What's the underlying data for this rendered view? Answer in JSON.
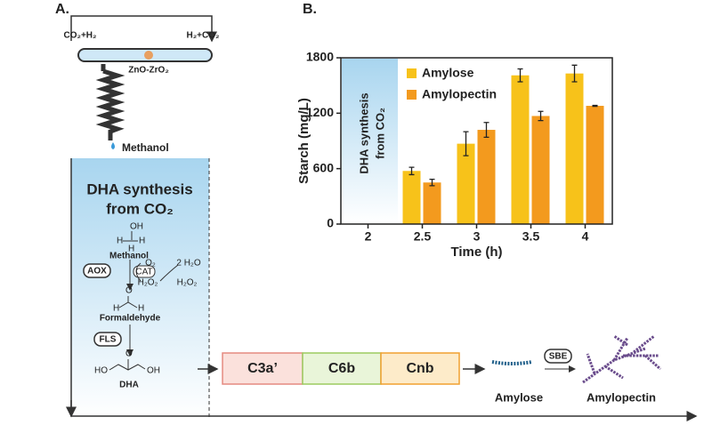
{
  "panel_a": {
    "label": "A.",
    "reactor": {
      "inlet": "CO₂+H₂",
      "outlet": "H₂+CO₂",
      "catalyst": "ZnO-ZrO₂",
      "product": "Methanol"
    },
    "module_title": [
      "DHA synthesis",
      "from CO₂"
    ],
    "atoms": [
      "OH",
      "H",
      "H",
      "H",
      "O",
      "H",
      "H",
      "HO",
      "O",
      "OH"
    ],
    "labels": {
      "methanol": "Methanol",
      "aox": "AOX",
      "o2": "O₂",
      "water": "2 H₂O",
      "cat": "CAT",
      "h2o2_in": "H₂O₂",
      "h2o2_out": "H₂O₂",
      "formaldehyde": "Formaldehyde",
      "fls": "FLS",
      "dha": "DHA"
    },
    "enzymes": [
      "C3a’",
      "C6b",
      "Cnb"
    ],
    "amylose": "Amylose",
    "sbe": "SBE",
    "amylopectin": "Amylopectin"
  },
  "chart_data": {
    "type": "bar",
    "panel_label": "B.",
    "inset": [
      "DHA synthesis",
      "from CO₂"
    ],
    "y_label": "Starch (mg/L)",
    "x_label": "Time (h)",
    "categories": [
      "2",
      "2.5",
      "3",
      "3.5",
      "4"
    ],
    "series": [
      {
        "name": "Amylose",
        "color": "#f7c21a",
        "values": [
          null,
          575,
          870,
          1610,
          1630
        ],
        "errors": [
          null,
          40,
          130,
          70,
          90
        ]
      },
      {
        "name": "Amylopectin",
        "color": "#f39a1e",
        "values": [
          null,
          450,
          1020,
          1170,
          1280
        ],
        "errors": [
          null,
          35,
          80,
          50,
          5
        ]
      }
    ],
    "ylim": [
      0,
      1800
    ],
    "yticks": [
      0,
      600,
      1200,
      1800
    ]
  }
}
